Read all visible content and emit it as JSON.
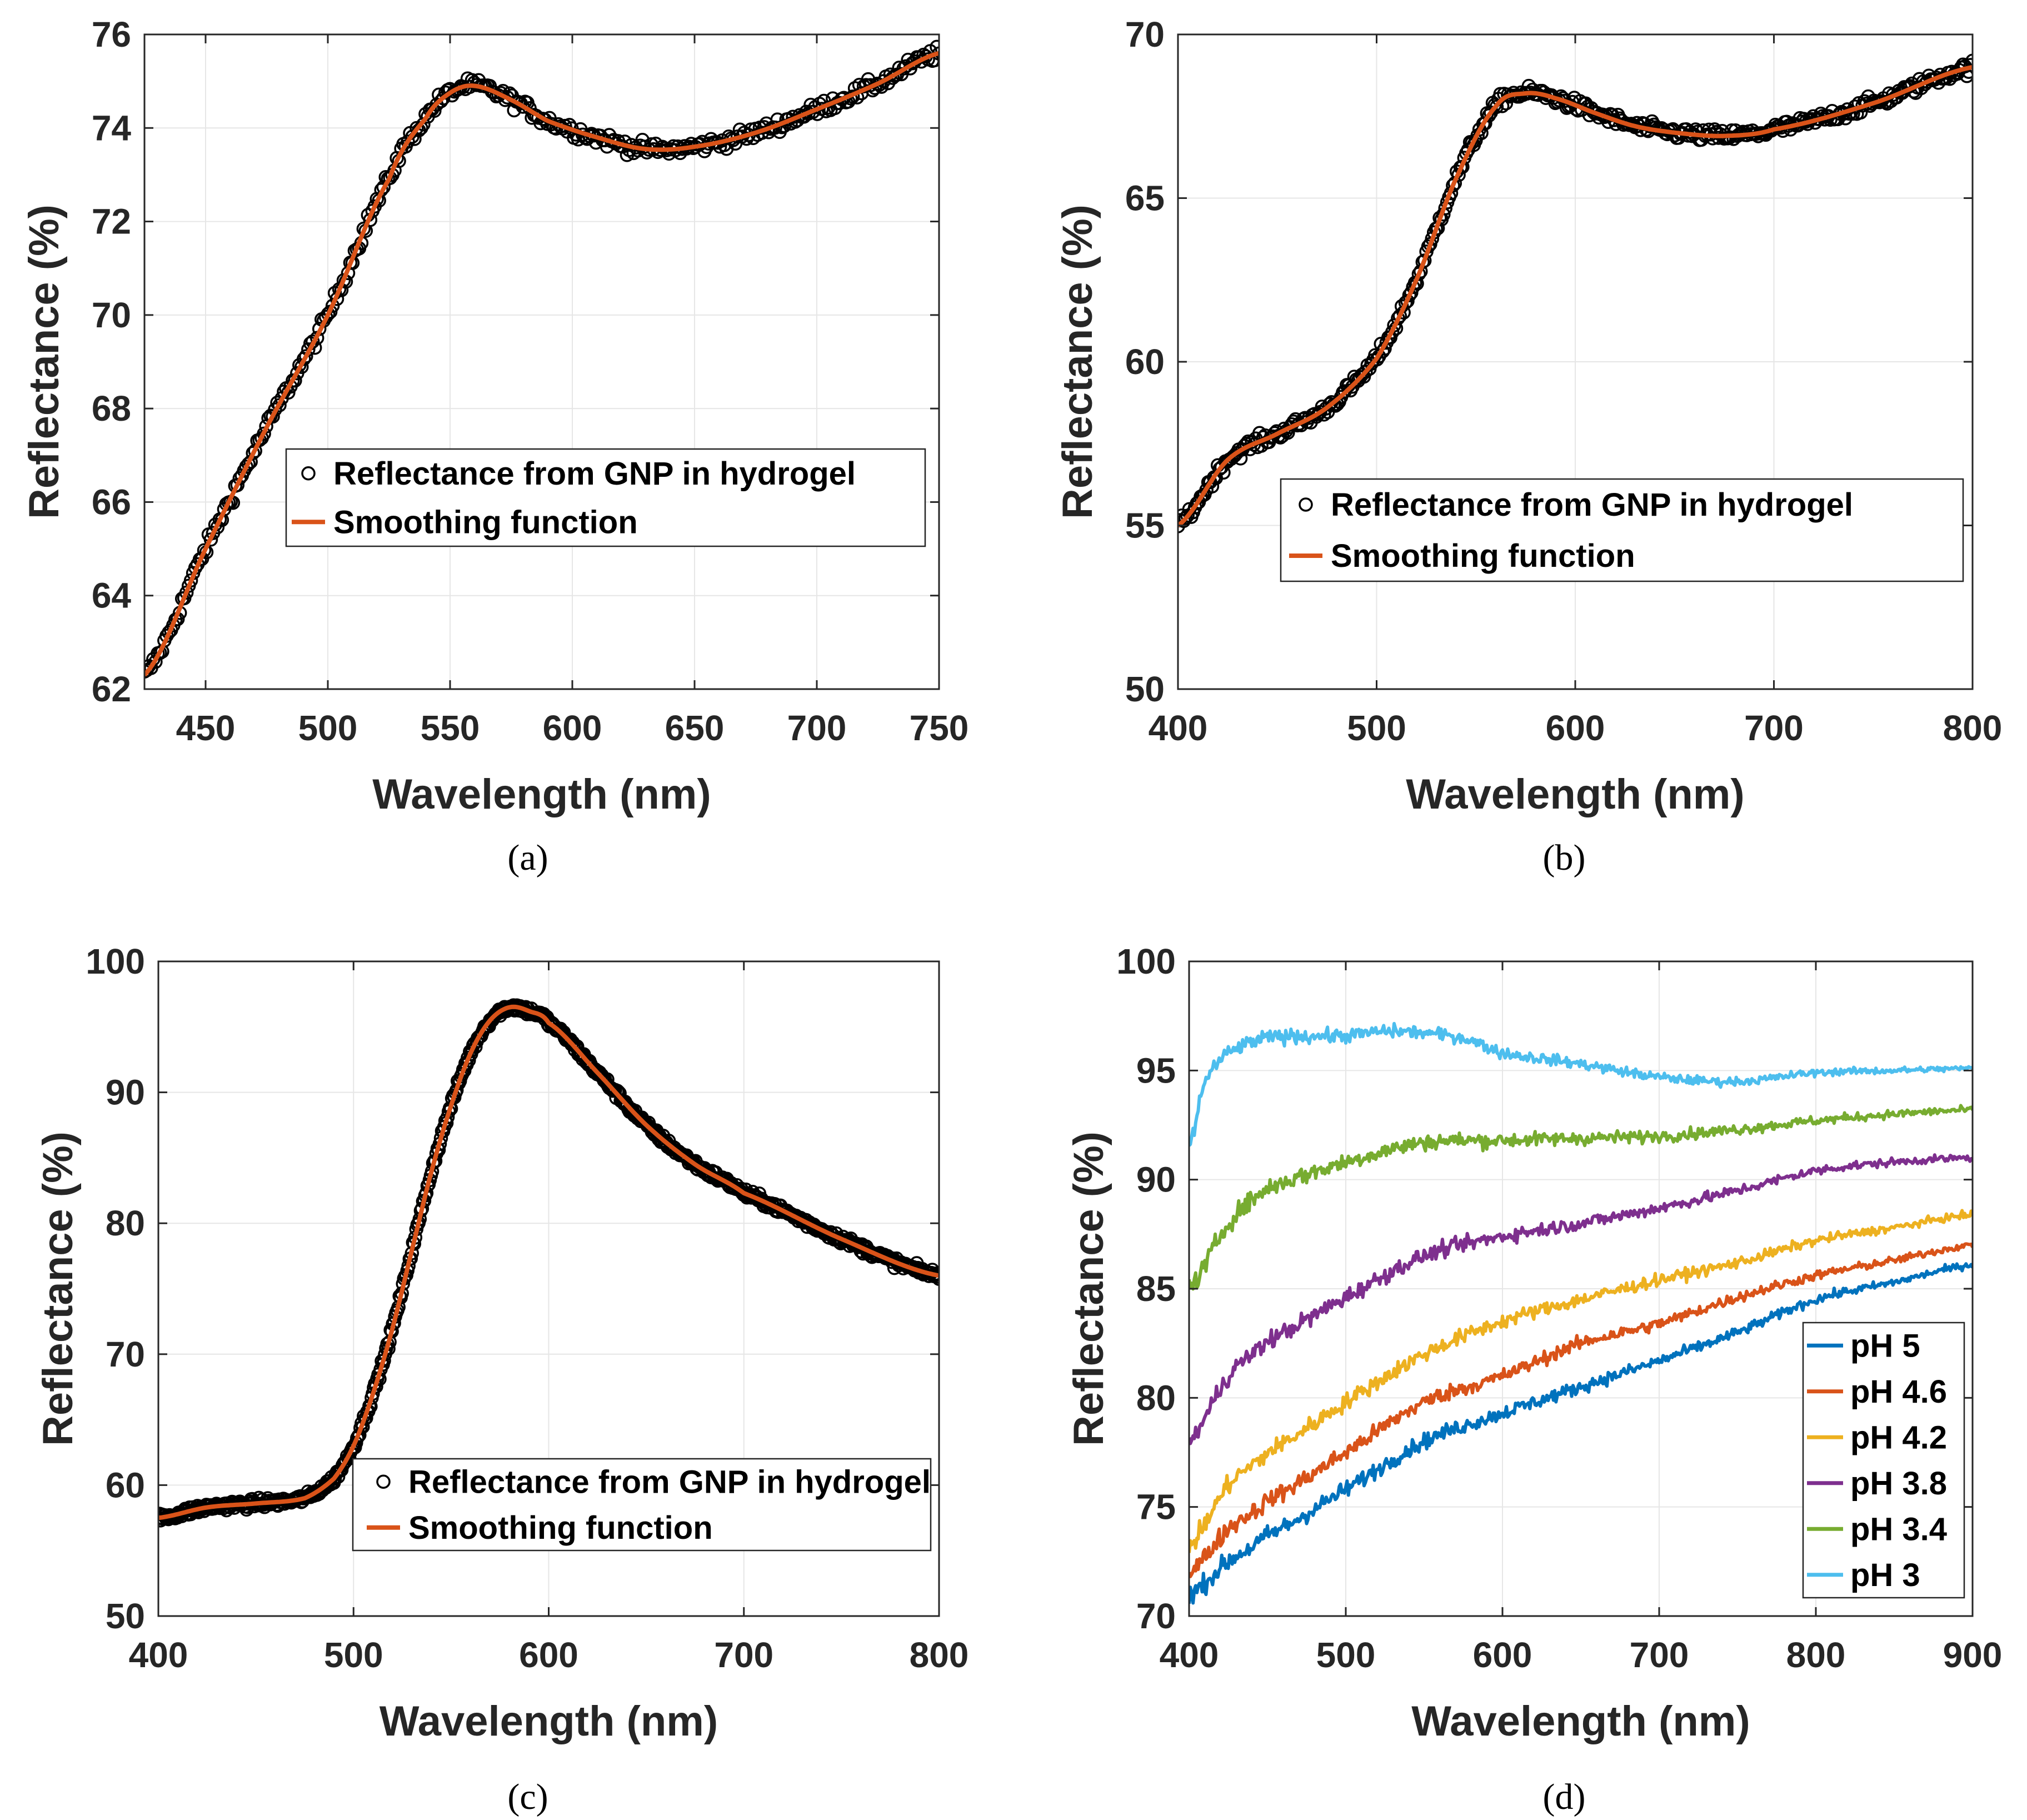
{
  "figure_colors": {
    "axis": "#262626",
    "grid": "#e6e6e6",
    "marker": "#000000",
    "smooth": "#d95319"
  },
  "chart_data": [
    {
      "id": "a",
      "type": "scatter",
      "caption": "(a)",
      "xlabel": "Wavelength (nm)",
      "ylabel": "Reflectance (%)",
      "xlim": [
        425,
        750
      ],
      "ylim": [
        62,
        76
      ],
      "xticks": [
        450,
        500,
        550,
        600,
        650,
        700,
        750
      ],
      "yticks": [
        62,
        64,
        66,
        68,
        70,
        72,
        74,
        76
      ],
      "grid": true,
      "legend_position": "center-right",
      "legend": [
        "Reflectance from GNP in hydrogel",
        "Smoothing function"
      ],
      "series": [
        {
          "name": "Reflectance from GNP in hydrogel",
          "style": "markers",
          "noise": 0.15,
          "count": 360
        },
        {
          "name": "Smoothing function",
          "style": "line",
          "x": [
            425,
            450,
            475,
            500,
            525,
            540,
            550,
            560,
            575,
            590,
            610,
            630,
            650,
            675,
            700,
            725,
            750
          ],
          "y": [
            62.3,
            65.0,
            67.6,
            70.0,
            72.9,
            74.2,
            74.75,
            74.9,
            74.6,
            74.15,
            73.8,
            73.55,
            73.6,
            73.9,
            74.4,
            74.95,
            75.6
          ]
        }
      ]
    },
    {
      "id": "b",
      "type": "scatter",
      "caption": "(b)",
      "xlabel": "Wavelength (nm)",
      "ylabel": "Reflectance (%)",
      "xlim": [
        400,
        800
      ],
      "ylim": [
        50,
        70
      ],
      "xticks": [
        400,
        500,
        600,
        700,
        800
      ],
      "yticks": [
        50,
        55,
        60,
        65,
        70
      ],
      "grid": true,
      "legend_position": "center-right",
      "legend": [
        "Reflectance from GNP in hydrogel",
        "Smoothing function"
      ],
      "series": [
        {
          "name": "Reflectance from GNP in hydrogel",
          "style": "markers",
          "noise": 0.2,
          "count": 420
        },
        {
          "name": "Smoothing function",
          "style": "line",
          "x": [
            400,
            425,
            450,
            475,
            500,
            520,
            540,
            560,
            575,
            590,
            610,
            630,
            650,
            675,
            700,
            750,
            800
          ],
          "y": [
            55.0,
            57.0,
            57.8,
            58.6,
            60.1,
            62.5,
            65.6,
            67.8,
            68.2,
            68.05,
            67.6,
            67.2,
            67.0,
            66.9,
            67.1,
            67.9,
            69.0
          ]
        }
      ]
    },
    {
      "id": "c",
      "type": "scatter",
      "caption": "(c)",
      "xlabel": "Wavelength (nm)",
      "ylabel": "Reflectance (%)",
      "xlim": [
        400,
        800
      ],
      "ylim": [
        50,
        100
      ],
      "xticks": [
        400,
        500,
        600,
        700,
        800
      ],
      "yticks": [
        50,
        60,
        70,
        80,
        90,
        100
      ],
      "grid": true,
      "legend_position": "bottom-right",
      "legend": [
        "Reflectance from GNP in hydrogel",
        "Smoothing function"
      ],
      "series": [
        {
          "name": "Reflectance from GNP in hydrogel",
          "style": "markers",
          "noise": 0.35,
          "count": 700
        },
        {
          "name": "Smoothing function",
          "style": "line",
          "x": [
            400,
            425,
            450,
            475,
            490,
            500,
            510,
            520,
            530,
            540,
            550,
            560,
            570,
            580,
            590,
            600,
            625,
            650,
            675,
            700,
            750,
            800
          ],
          "y": [
            57.5,
            58.3,
            58.6,
            59.0,
            60.5,
            63.0,
            67.0,
            72.0,
            78.0,
            84.0,
            89.0,
            93.0,
            95.5,
            96.5,
            96.2,
            95.3,
            91.5,
            87.5,
            84.5,
            82.3,
            78.8,
            76.0
          ]
        }
      ]
    },
    {
      "id": "d",
      "type": "line",
      "caption": "(d)",
      "xlabel": "Wavelength (nm)",
      "ylabel": "Reflectance (%)",
      "xlim": [
        400,
        900
      ],
      "ylim": [
        70,
        100
      ],
      "xticks": [
        400,
        500,
        600,
        700,
        800,
        900
      ],
      "yticks": [
        70,
        75,
        80,
        85,
        90,
        95,
        100
      ],
      "grid": true,
      "legend_position": "bottom-right",
      "legend": [
        "pH 5",
        "pH 4.6",
        "pH 4.2",
        "pH 3.8",
        "pH 3.4",
        "pH 3"
      ],
      "series": [
        {
          "name": "pH 5",
          "color": "#0072bd",
          "noise": 0.25,
          "x": [
            400,
            425,
            450,
            500,
            550,
            600,
            650,
            700,
            750,
            800,
            850,
            900
          ],
          "y": [
            71.0,
            72.5,
            73.7,
            75.8,
            78.0,
            79.3,
            80.5,
            81.7,
            83.0,
            84.5,
            85.3,
            86.1
          ]
        },
        {
          "name": "pH 4.6",
          "color": "#d95319",
          "noise": 0.25,
          "x": [
            400,
            425,
            450,
            500,
            550,
            600,
            650,
            700,
            750,
            800,
            850,
            900
          ],
          "y": [
            72.0,
            74.0,
            75.3,
            77.5,
            79.8,
            81.0,
            82.5,
            83.4,
            84.6,
            85.6,
            86.3,
            87.0
          ]
        },
        {
          "name": "pH 4.2",
          "color": "#edb120",
          "noise": 0.25,
          "x": [
            400,
            425,
            450,
            500,
            550,
            600,
            650,
            700,
            750,
            800,
            850,
            900
          ],
          "y": [
            73.2,
            76.0,
            77.5,
            79.8,
            82.0,
            83.5,
            84.5,
            85.4,
            86.2,
            87.2,
            87.8,
            88.4
          ]
        },
        {
          "name": "pH 3.8",
          "color": "#7e2f8e",
          "noise": 0.25,
          "x": [
            400,
            425,
            450,
            500,
            550,
            600,
            650,
            700,
            750,
            800,
            850,
            900
          ],
          "y": [
            78.0,
            81.0,
            82.6,
            84.6,
            86.5,
            87.4,
            88.0,
            88.7,
            89.5,
            90.4,
            90.8,
            91.0
          ]
        },
        {
          "name": "pH 3.4",
          "color": "#77ac30",
          "noise": 0.25,
          "x": [
            400,
            425,
            450,
            500,
            550,
            600,
            650,
            700,
            750,
            800,
            850,
            900
          ],
          "y": [
            85.0,
            88.0,
            89.6,
            90.8,
            91.7,
            91.8,
            91.9,
            92.0,
            92.3,
            92.7,
            93.0,
            93.2
          ]
        },
        {
          "name": "pH 3",
          "color": "#4dbeee",
          "noise": 0.2,
          "x": [
            400,
            410,
            425,
            450,
            500,
            530,
            575,
            600,
            650,
            700,
            750,
            800,
            850,
            900
          ],
          "y": [
            91.5,
            94.5,
            95.8,
            96.5,
            96.6,
            96.8,
            96.5,
            95.8,
            95.3,
            94.7,
            94.5,
            94.9,
            95.0,
            95.1
          ]
        }
      ]
    }
  ]
}
